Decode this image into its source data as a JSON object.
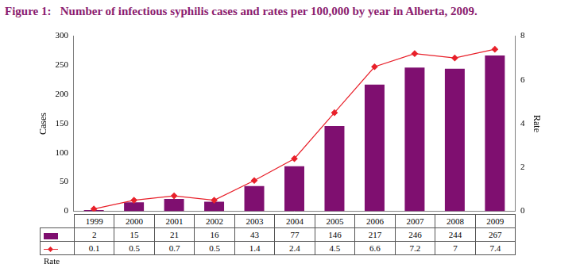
{
  "chart_data": {
    "type": "bar",
    "title": "Figure 1:   Number of infectious syphilis cases and rates per 100,000 by year in Alberta, 2009.",
    "ylabel": "Cases",
    "y2label": "Rate",
    "categories": [
      "1999",
      "2000",
      "2001",
      "2002",
      "2003",
      "2004",
      "2005",
      "2006",
      "2007",
      "2008",
      "2009"
    ],
    "series": [
      {
        "name": "Cases",
        "type": "bar",
        "color": "#7f0f70",
        "values": [
          2,
          15,
          21,
          16,
          43,
          77,
          146,
          217,
          246,
          244,
          267
        ]
      },
      {
        "name": "Rate",
        "type": "line",
        "axis": "y2",
        "color": "#e8202a",
        "marker": "diamond",
        "line_style": "solid",
        "values": [
          0.1,
          0.5,
          0.7,
          0.5,
          1.4,
          2.4,
          4.5,
          6.6,
          7.2,
          7.0,
          7.4
        ]
      }
    ],
    "ylim": [
      0,
      300
    ],
    "yticks": [
      0,
      50,
      100,
      150,
      200,
      250,
      300
    ],
    "y2lim": [
      0,
      8
    ],
    "y2ticks": [
      0,
      2,
      4,
      6,
      8
    ],
    "grid": false,
    "data_labels": true
  }
}
